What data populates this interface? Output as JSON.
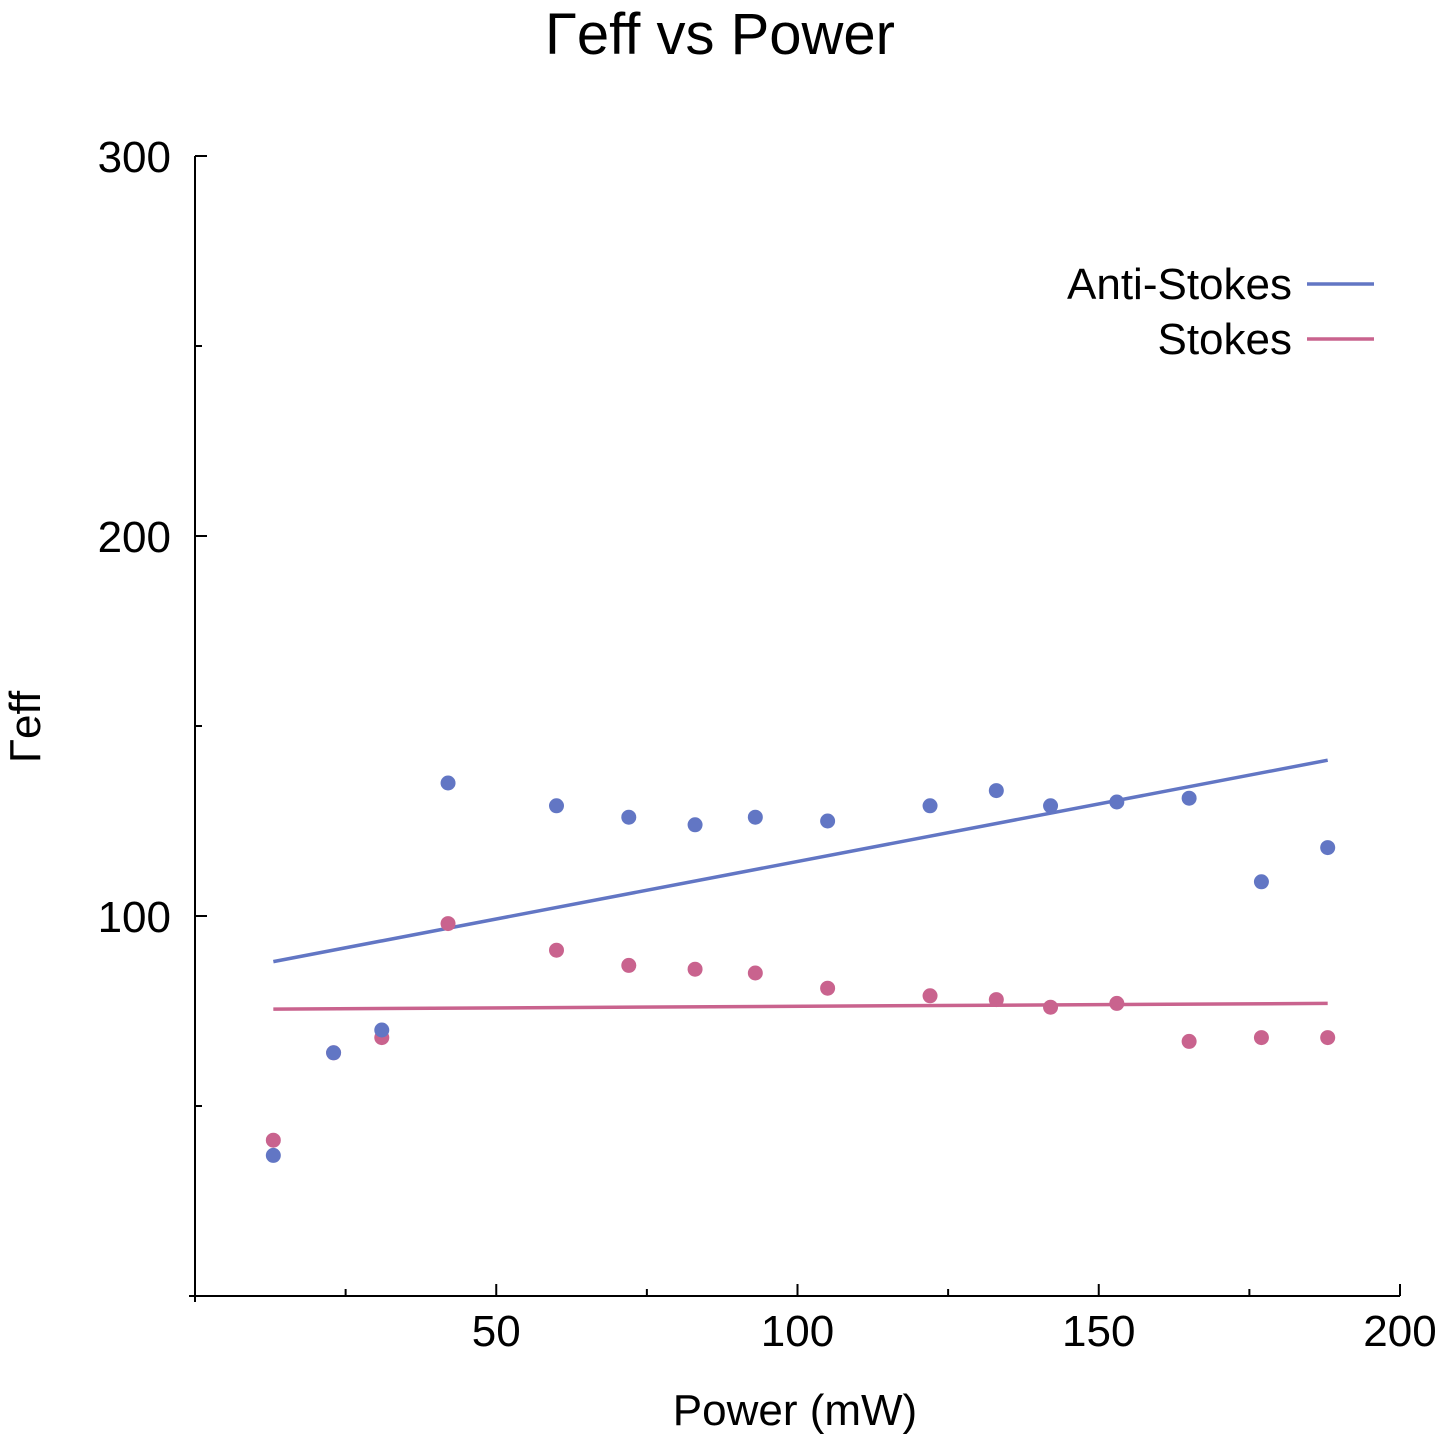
{
  "chart_data": {
    "type": "scatter",
    "title": "Γeff vs Power",
    "xlabel": "Power (mW)",
    "ylabel": "Γeff",
    "xlim": [
      0,
      200
    ],
    "ylim": [
      0,
      300
    ],
    "x_ticks": [
      50,
      100,
      150,
      200
    ],
    "x_tick_labels": [
      "50",
      "100",
      "150",
      "200"
    ],
    "x_minor_ticks": [
      25,
      75,
      125,
      175
    ],
    "y_ticks": [
      100,
      200,
      300
    ],
    "y_tick_labels": [
      "100",
      "200",
      "300"
    ],
    "y_minor_ticks": [
      50,
      150,
      250
    ],
    "grid": false,
    "legend_position": "top-right",
    "series": [
      {
        "name": "Anti-Stokes",
        "color": "#6276c4",
        "x": [
          13,
          23,
          31,
          42,
          60,
          72,
          83,
          93,
          105,
          122,
          133,
          142,
          153,
          165,
          177,
          188
        ],
        "y": [
          37,
          64,
          70,
          135,
          129,
          126,
          124,
          126,
          125,
          129,
          133,
          129,
          130,
          131,
          109,
          118
        ],
        "fit": {
          "x": [
            13,
            188
          ],
          "y": [
            88,
            141
          ]
        }
      },
      {
        "name": "Stokes",
        "color": "#c9638e",
        "x": [
          13,
          23,
          31,
          42,
          60,
          72,
          83,
          93,
          105,
          122,
          133,
          142,
          153,
          165,
          177,
          188
        ],
        "y": [
          41,
          64,
          68,
          98,
          91,
          87,
          86,
          85,
          81,
          79,
          78,
          76,
          77,
          67,
          68,
          68
        ],
        "fit": {
          "x": [
            13,
            188
          ],
          "y": [
            75.5,
            77
          ]
        }
      }
    ]
  }
}
